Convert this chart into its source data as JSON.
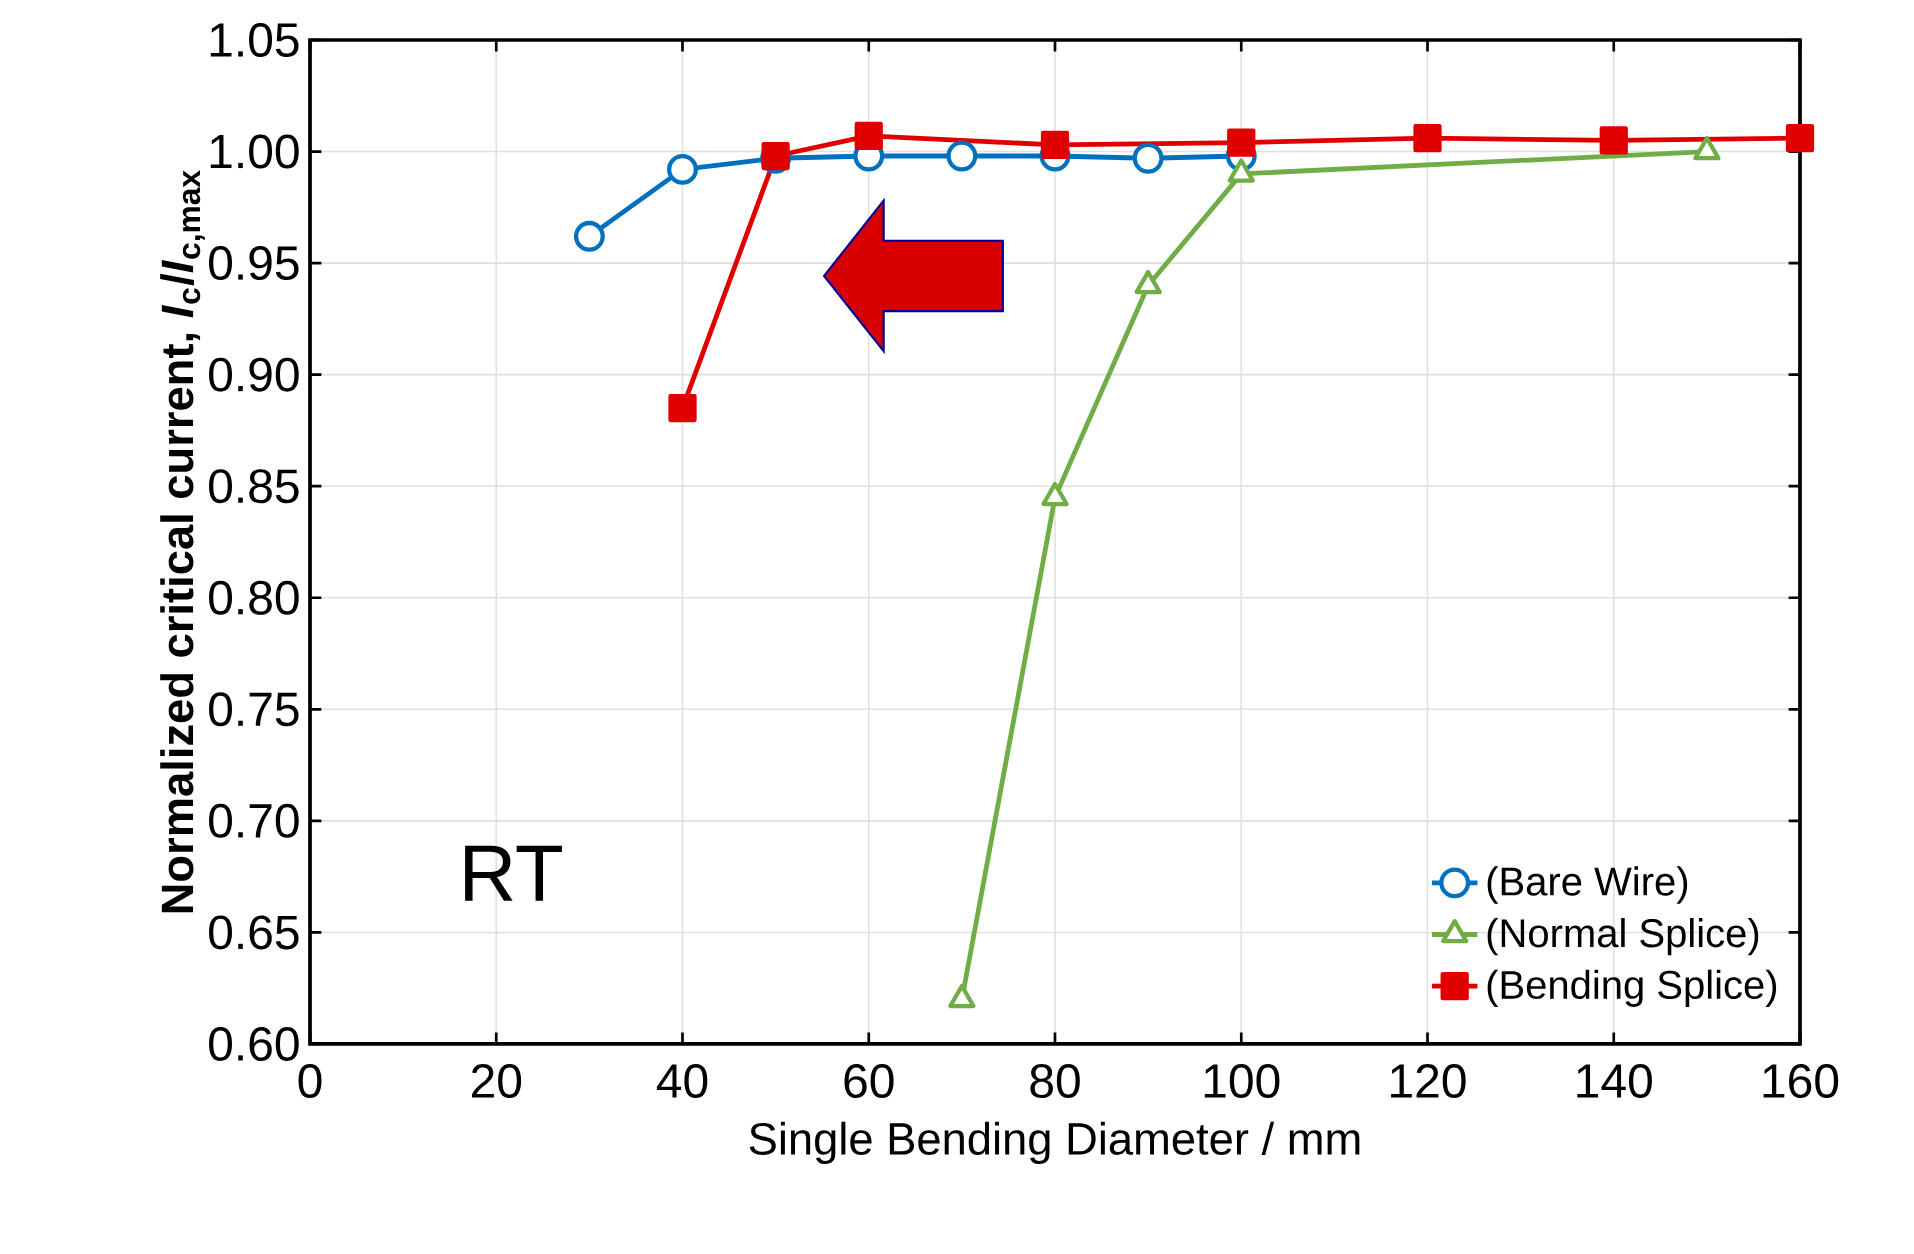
{
  "chart_data": {
    "type": "line",
    "xlabel": "Single Bending Diameter / mm",
    "ylabel": "Normalized critical current, *I*$_{c}$/*I*$_{c,max}$",
    "xlim": [
      0,
      160
    ],
    "xticks": [
      0,
      20,
      40,
      60,
      80,
      100,
      120,
      140,
      160
    ],
    "ylim": [
      0.6,
      1.05
    ],
    "yticks": [
      {
        "value": 0.6,
        "label": "0.60"
      },
      0.65,
      {
        "value": 0.7,
        "label": "0.70"
      },
      0.75,
      {
        "value": 0.8,
        "label": "0.80"
      },
      0.85,
      {
        "value": 0.9,
        "label": "0.90"
      },
      0.95,
      {
        "value": 1.0,
        "label": "1.00"
      },
      1.05
    ],
    "grid": true,
    "legend": "bottom right",
    "line_style": "solid",
    "annotations": [
      "RT"
    ],
    "series": [
      {
        "name": "(Bare Wire)",
        "color": "#0070c0",
        "marker": "circle",
        "x": [
          30,
          40,
          50,
          60,
          70,
          80,
          90,
          100
        ],
        "values": [
          0.962,
          0.992,
          0.997,
          0.998,
          0.998,
          0.998,
          0.997,
          0.998
        ]
      },
      {
        "name": "(Normal Splice)",
        "color": "#70ad47",
        "marker": "triangle",
        "x": [
          70,
          80,
          90,
          100,
          150
        ],
        "values": [
          0.62,
          0.845,
          0.94,
          0.99,
          1.0
        ]
      },
      {
        "name": "(Bending Splice)",
        "color": "#e00000",
        "marker": "square",
        "x": [
          40,
          50,
          60,
          80,
          100,
          120,
          140,
          160
        ],
        "values": [
          0.885,
          0.998,
          1.007,
          1.003,
          1.004,
          1.006,
          1.005,
          1.006
        ]
      }
    ]
  }
}
